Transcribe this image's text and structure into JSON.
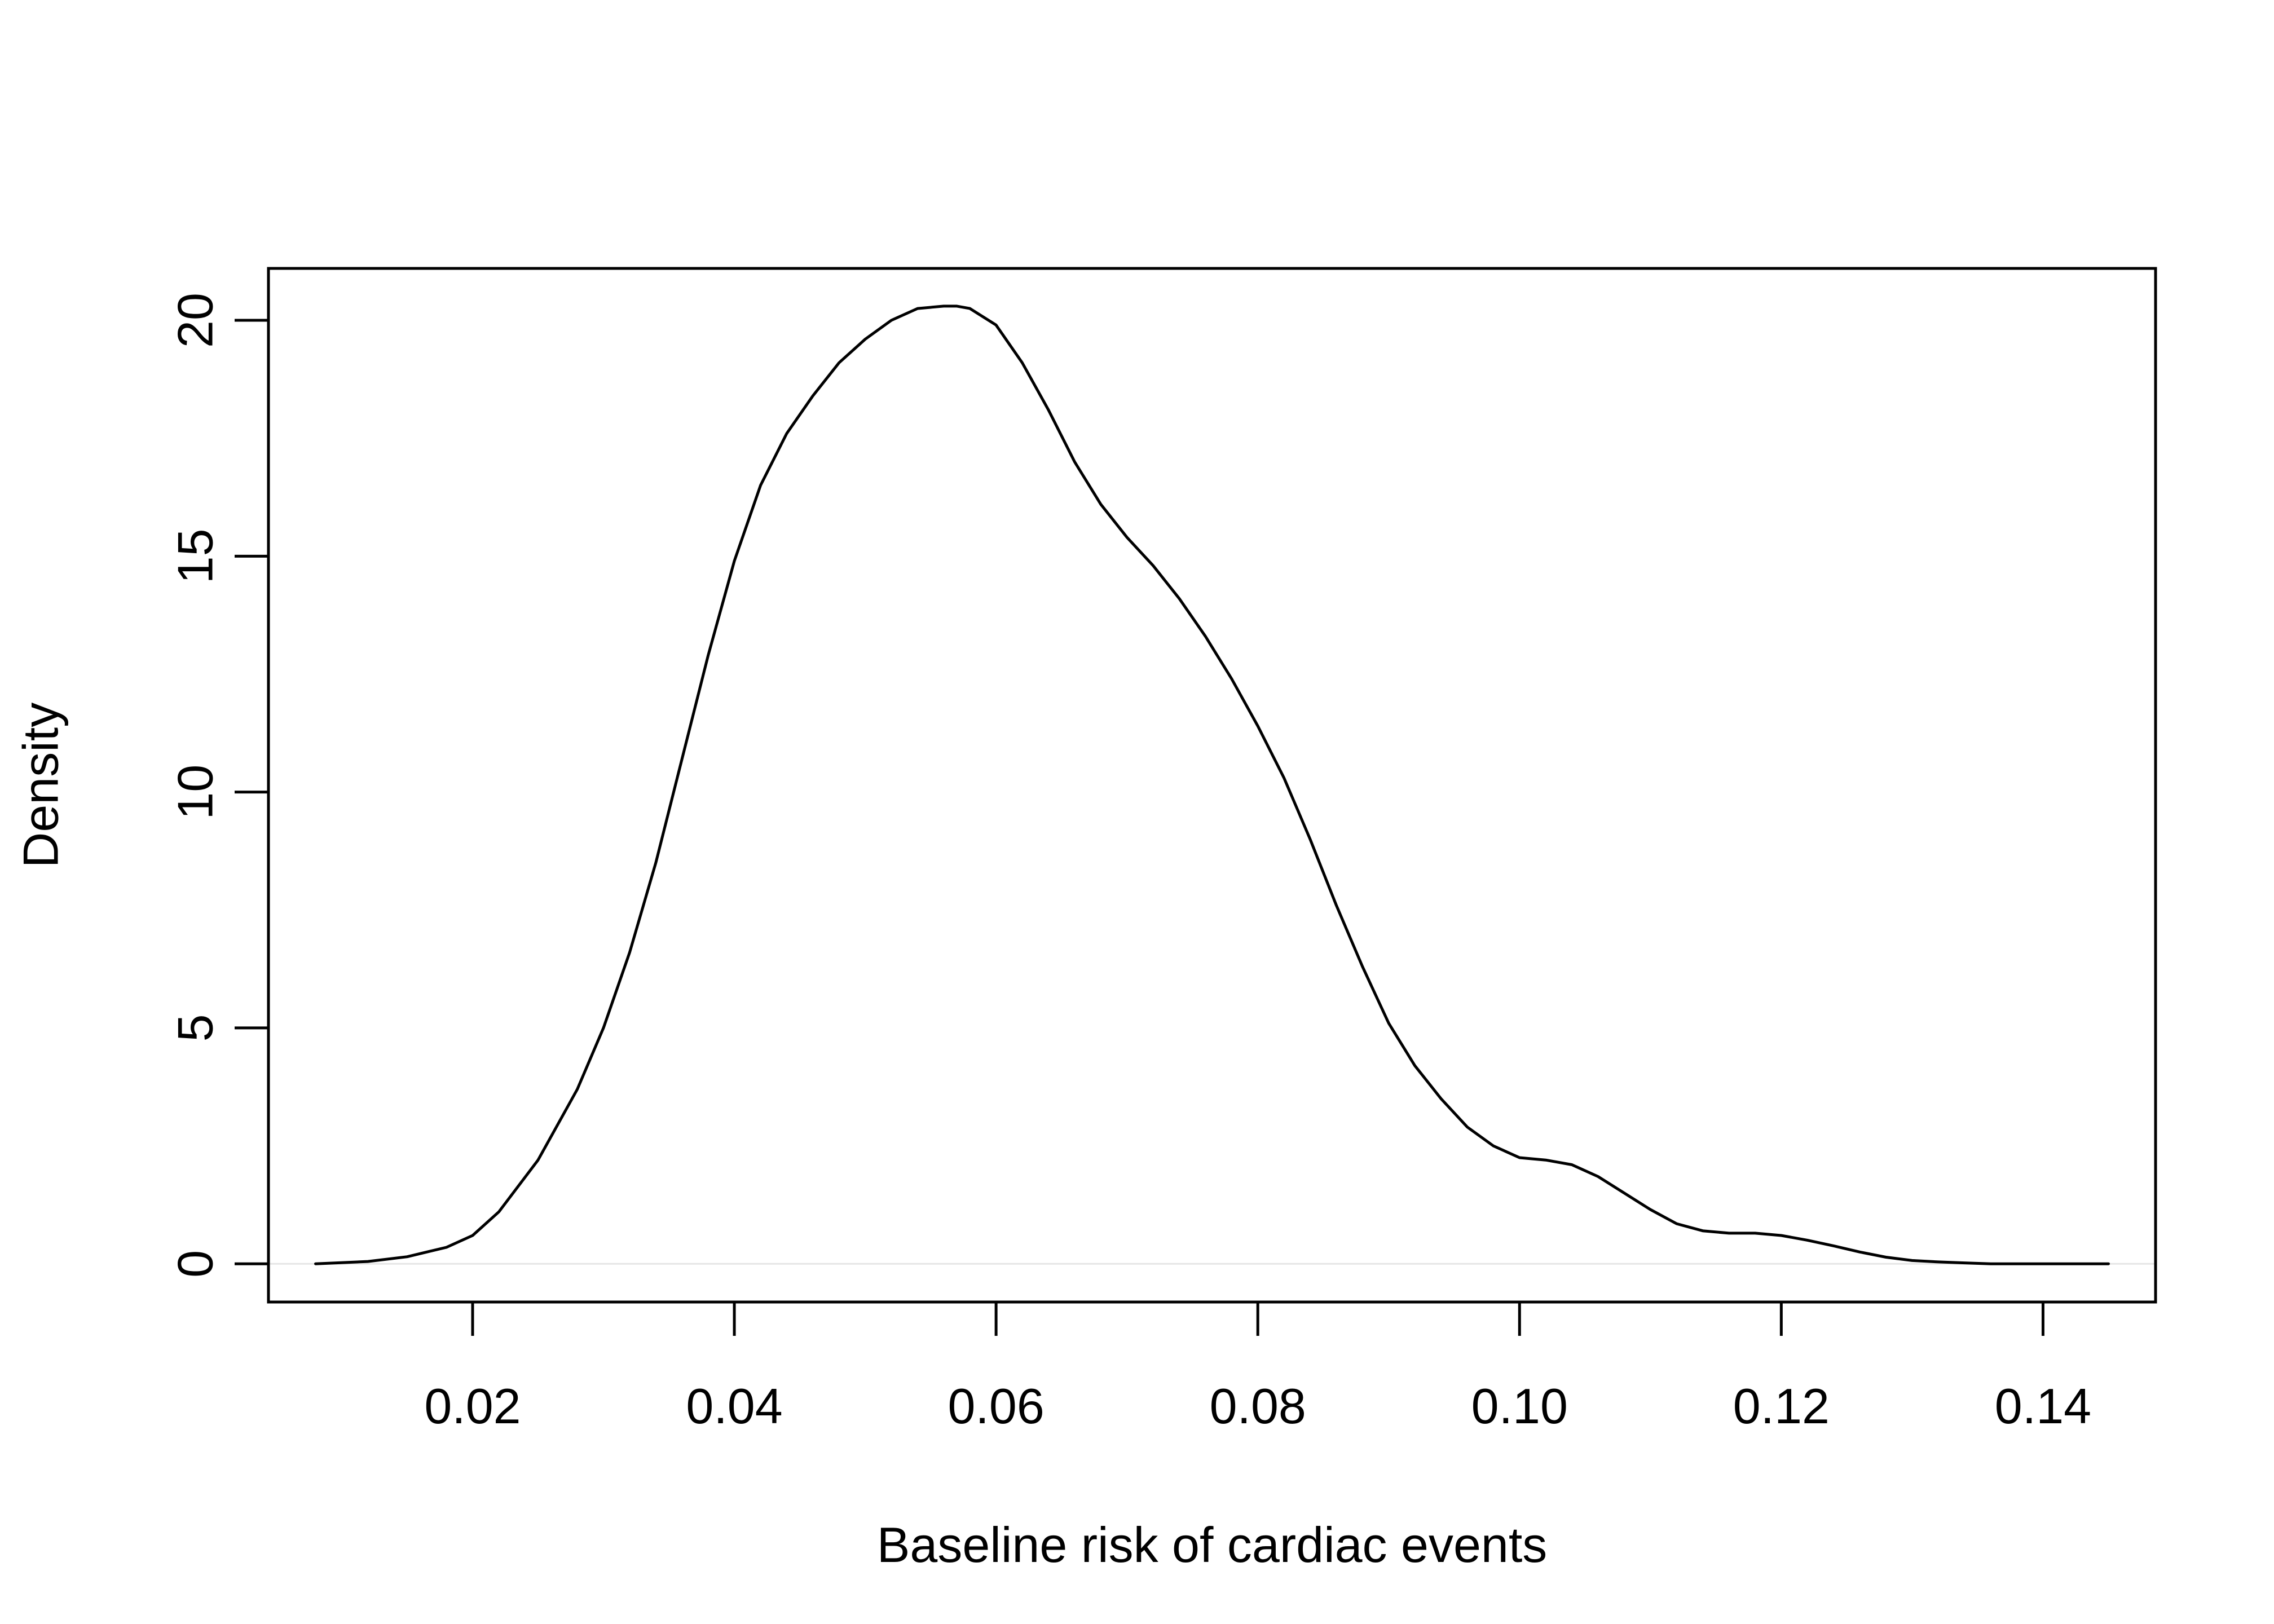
{
  "chart_data": {
    "type": "line",
    "title": "",
    "xlabel": "Baseline risk of cardiac events",
    "ylabel": "Density",
    "xlim": [
      0.0044,
      0.1486
    ],
    "ylim": [
      -0.81,
      21.1
    ],
    "x_ticks": [
      0.02,
      0.04,
      0.06,
      0.08,
      0.1,
      0.12,
      0.14
    ],
    "x_tick_labels": [
      "0.02",
      "0.04",
      "0.06",
      "0.08",
      "0.10",
      "0.12",
      "0.14"
    ],
    "y_ticks": [
      0,
      5,
      10,
      15,
      20
    ],
    "y_tick_labels": [
      "0",
      "5",
      "10",
      "15",
      "20"
    ],
    "grid": false,
    "zero_line": true,
    "series": [
      {
        "x": [
          0.008,
          0.012,
          0.015,
          0.018,
          0.02,
          0.022,
          0.025,
          0.028,
          0.03,
          0.032,
          0.034,
          0.036,
          0.038,
          0.04,
          0.042,
          0.044,
          0.046,
          0.048,
          0.05,
          0.052,
          0.054,
          0.056,
          0.057,
          0.058,
          0.06,
          0.062,
          0.064,
          0.066,
          0.068,
          0.07,
          0.072,
          0.074,
          0.076,
          0.078,
          0.08,
          0.082,
          0.084,
          0.086,
          0.088,
          0.09,
          0.092,
          0.094,
          0.096,
          0.098,
          0.1,
          0.102,
          0.104,
          0.106,
          0.108,
          0.11,
          0.112,
          0.114,
          0.116,
          0.118,
          0.12,
          0.122,
          0.124,
          0.126,
          0.128,
          0.13,
          0.132,
          0.134,
          0.136,
          0.138,
          0.14,
          0.142,
          0.145
        ],
        "y": [
          0.0,
          0.05,
          0.15,
          0.35,
          0.6,
          1.1,
          2.2,
          3.7,
          5.0,
          6.6,
          8.5,
          10.7,
          12.9,
          14.9,
          16.5,
          17.6,
          18.4,
          19.1,
          19.6,
          20.0,
          20.25,
          20.3,
          20.3,
          20.25,
          19.9,
          19.1,
          18.1,
          17.0,
          16.1,
          15.4,
          14.8,
          14.1,
          13.3,
          12.4,
          11.4,
          10.3,
          9.0,
          7.6,
          6.3,
          5.1,
          4.2,
          3.5,
          2.9,
          2.5,
          2.25,
          2.2,
          2.1,
          1.85,
          1.5,
          1.15,
          0.85,
          0.7,
          0.65,
          0.65,
          0.6,
          0.5,
          0.38,
          0.25,
          0.14,
          0.07,
          0.04,
          0.02,
          0.0,
          0.0,
          0.0,
          0.0,
          0.0
        ]
      }
    ]
  }
}
